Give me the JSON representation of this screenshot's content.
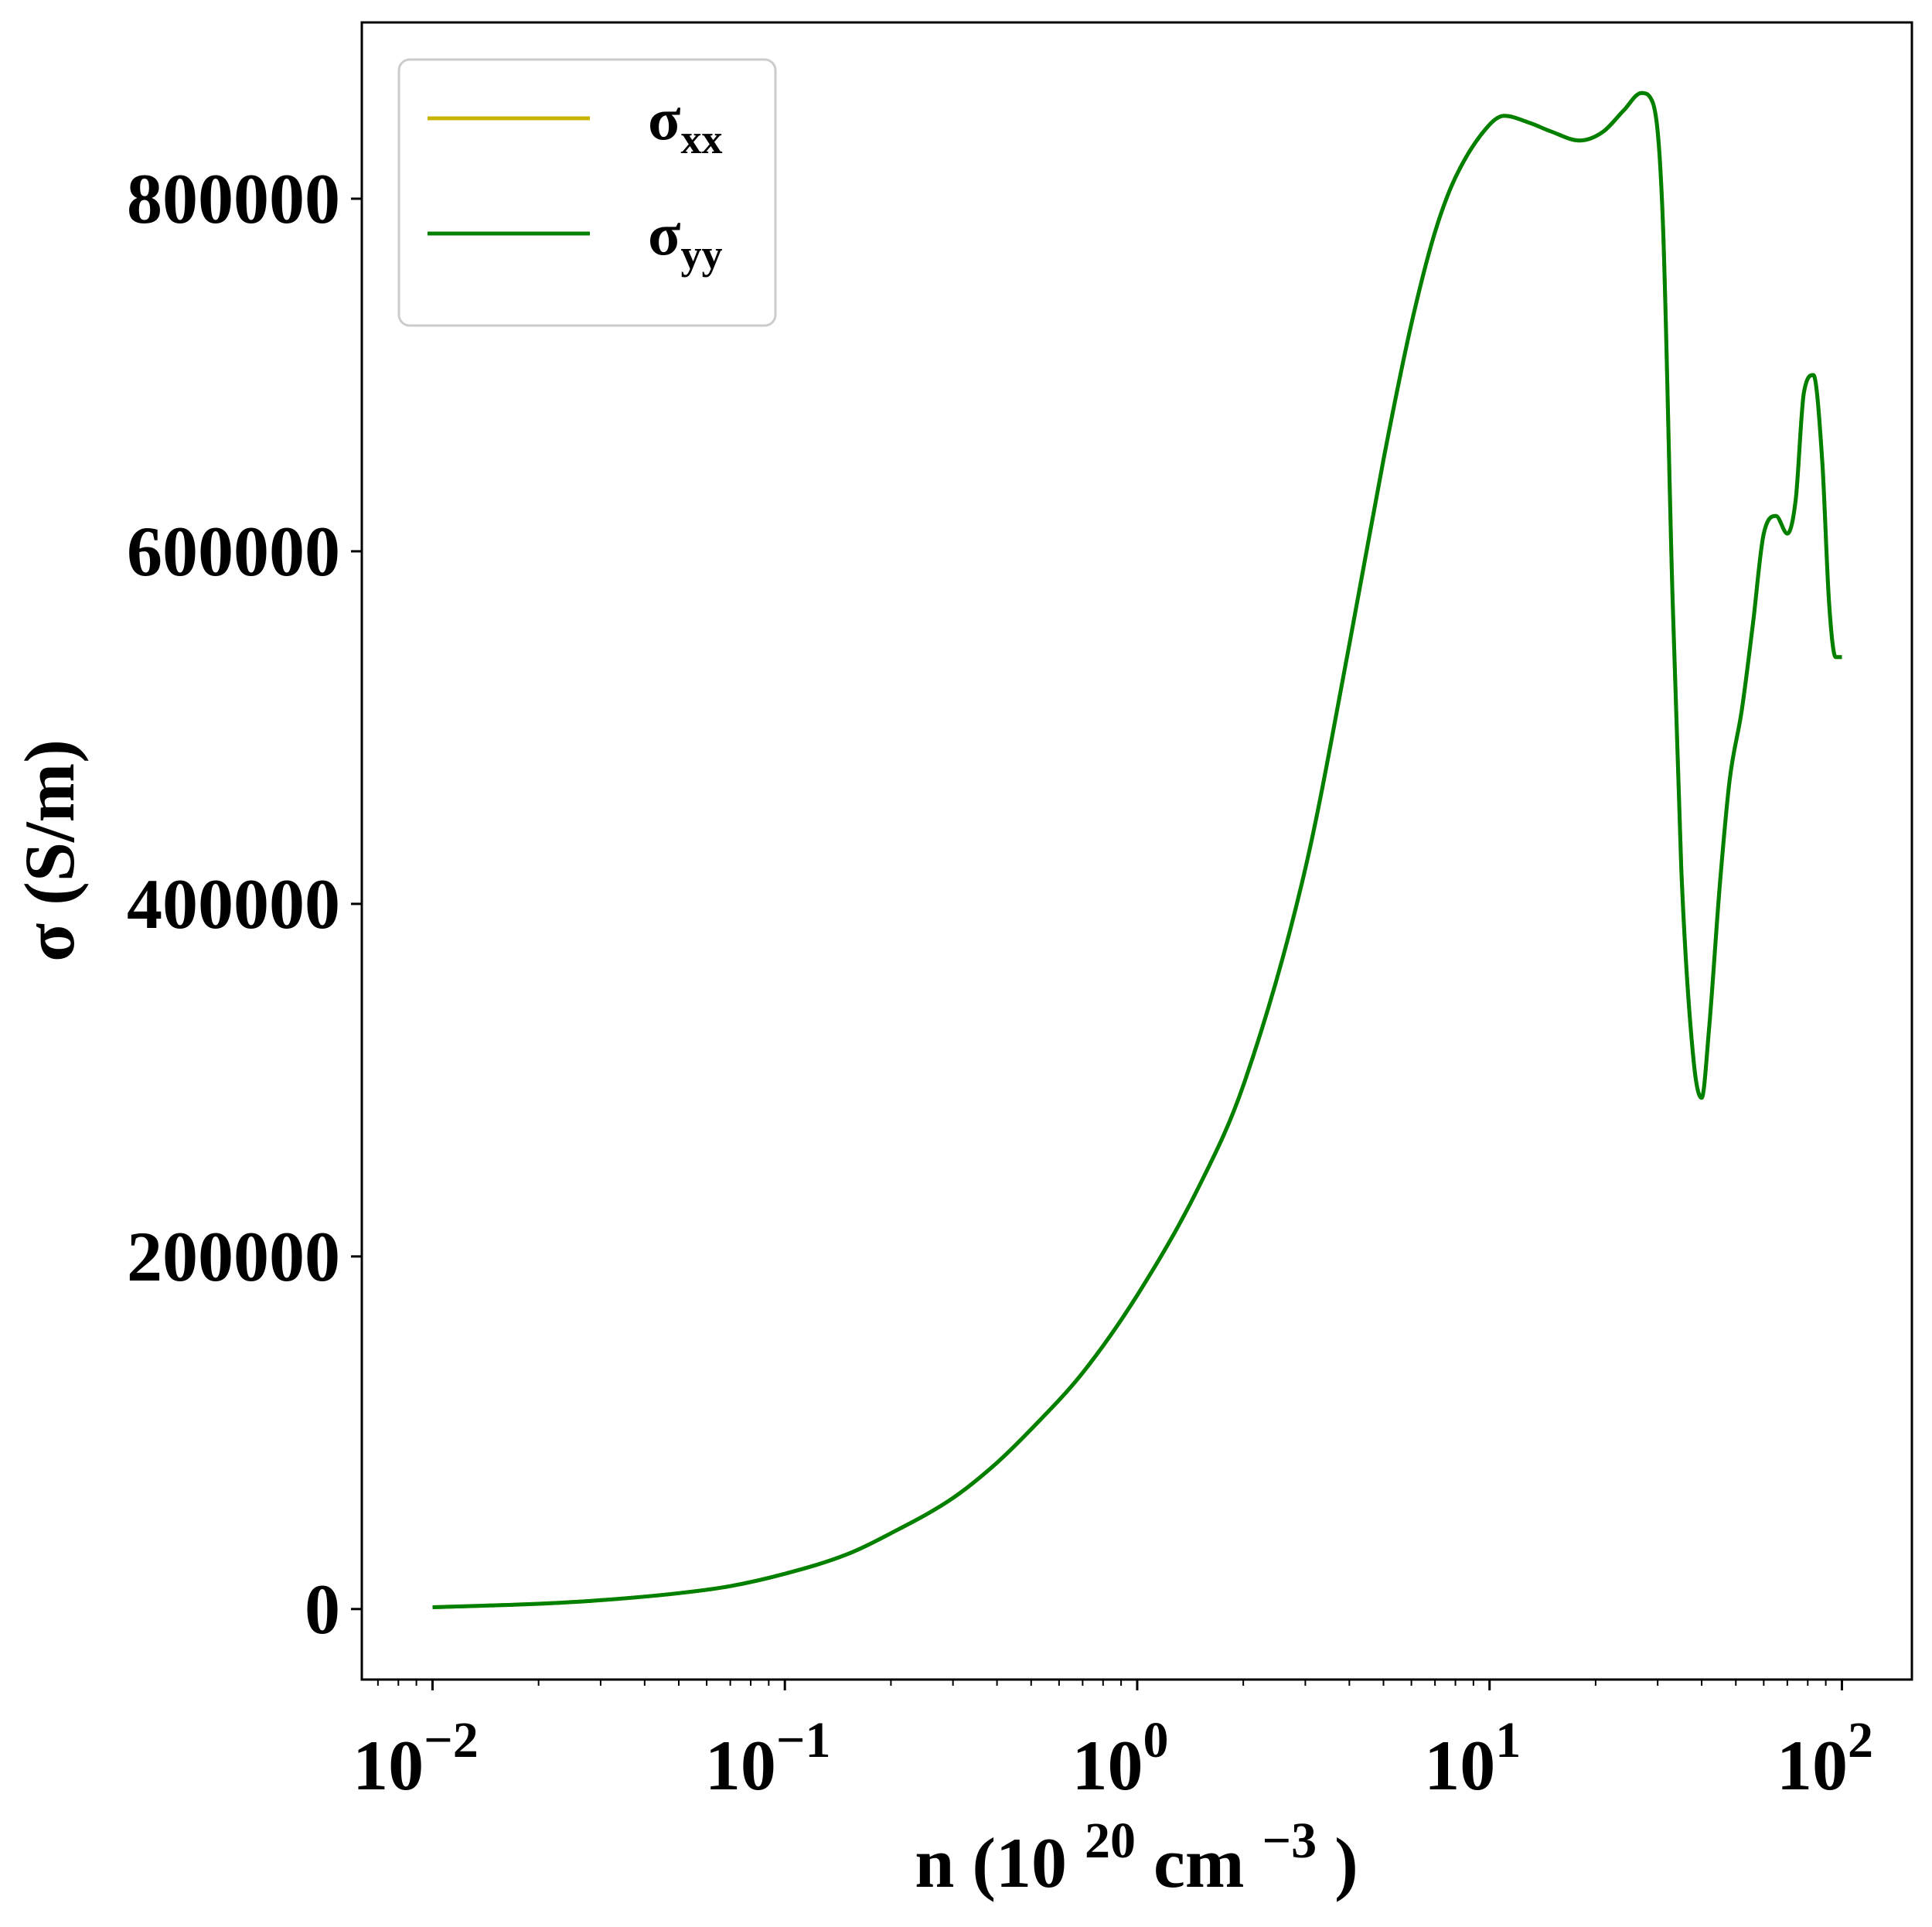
{
  "chart_data": {
    "type": "line",
    "xscale": "log",
    "xlabel": {
      "base": "n (10",
      "sup1": "20",
      "mid": " cm",
      "sup2": "−3",
      "end": ")"
    },
    "ylabel": "σ (S/m)",
    "xlim": [
      0.0063,
      158
    ],
    "ylim": [
      -40000,
      900000
    ],
    "xticks": [
      {
        "value": 0.01,
        "base": "10",
        "exp": "−2"
      },
      {
        "value": 0.1,
        "base": "10",
        "exp": "−1"
      },
      {
        "value": 1,
        "base": "10",
        "exp": "0"
      },
      {
        "value": 10,
        "base": "10",
        "exp": "1"
      },
      {
        "value": 100,
        "base": "10",
        "exp": "2"
      }
    ],
    "yticks": [
      {
        "value": 0,
        "label": "0"
      },
      {
        "value": 200000,
        "label": "200000"
      },
      {
        "value": 400000,
        "label": "400000"
      },
      {
        "value": 600000,
        "label": "600000"
      },
      {
        "value": 800000,
        "label": "800000"
      }
    ],
    "legend": {
      "position": "top-left"
    },
    "series": [
      {
        "name": "σxx",
        "sym": "σ",
        "sub": "xx",
        "color": "#c8b400",
        "x": [
          0.01,
          0.02,
          0.03,
          0.05,
          0.07,
          0.1,
          0.15,
          0.2,
          0.3,
          0.4,
          0.5,
          0.7,
          1,
          1.5,
          2,
          3,
          4,
          5,
          6,
          7,
          8,
          10,
          11,
          13,
          15,
          18,
          21,
          24,
          27,
          29,
          31,
          33,
          35,
          38,
          40,
          42,
          45,
          48,
          52,
          56,
          60,
          65,
          70,
          74,
          78,
          83,
          88,
          92,
          96,
          100
        ],
        "y": [
          1000,
          3000,
          5000,
          9000,
          13000,
          20000,
          31000,
          43000,
          63000,
          83000,
          102000,
          134000,
          178000,
          240000,
          297000,
          420000,
          547000,
          652000,
          729000,
          781000,
          812000,
          842000,
          847000,
          843000,
          838000,
          833000,
          838000,
          850000,
          860000,
          855000,
          790000,
          580000,
          420000,
          310000,
          290000,
          330000,
          410000,
          470000,
          510000,
          560000,
          610000,
          620000,
          610000,
          630000,
          690000,
          700000,
          650000,
          570000,
          540000,
          540000
        ]
      },
      {
        "name": "σyy",
        "sym": "σ",
        "sub": "yy",
        "color": "#008000",
        "x": [
          0.01,
          0.02,
          0.03,
          0.05,
          0.07,
          0.1,
          0.15,
          0.2,
          0.3,
          0.4,
          0.5,
          0.7,
          1,
          1.5,
          2,
          3,
          4,
          5,
          6,
          7,
          8,
          10,
          11,
          13,
          15,
          18,
          21,
          24,
          27,
          29,
          31,
          33,
          35,
          38,
          40,
          42,
          45,
          48,
          52,
          56,
          60,
          65,
          70,
          74,
          78,
          83,
          88,
          92,
          96,
          100
        ],
        "y": [
          1000,
          3000,
          5000,
          9000,
          13000,
          20000,
          31000,
          43000,
          63000,
          83000,
          102000,
          134000,
          178000,
          240000,
          297000,
          420000,
          547000,
          652000,
          729000,
          781000,
          812000,
          842000,
          847000,
          843000,
          838000,
          833000,
          838000,
          850000,
          860000,
          855000,
          790000,
          580000,
          420000,
          310000,
          290000,
          330000,
          410000,
          470000,
          510000,
          560000,
          610000,
          620000,
          610000,
          630000,
          690000,
          700000,
          650000,
          570000,
          540000,
          540000
        ]
      }
    ]
  }
}
